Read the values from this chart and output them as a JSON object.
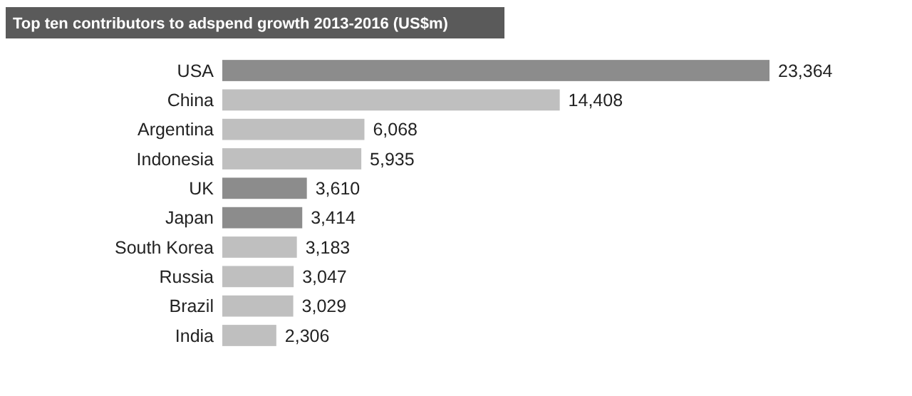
{
  "chart_data": {
    "type": "bar",
    "orientation": "horizontal",
    "title": "Top ten contributors to adspend growth 2013-2016  (US$m)",
    "categories": [
      "USA",
      "China",
      "Argentina",
      "Indonesia",
      "UK",
      "Japan",
      "South Korea",
      "Russia",
      "Brazil",
      "India"
    ],
    "values": [
      23364,
      14408,
      6068,
      5935,
      3610,
      3414,
      3183,
      3047,
      3029,
      2306
    ],
    "colors": [
      "#8c8c8c",
      "#bfbfbf",
      "#bfbfbf",
      "#bfbfbf",
      "#8c8c8c",
      "#8c8c8c",
      "#bfbfbf",
      "#bfbfbf",
      "#bfbfbf",
      "#bfbfbf"
    ],
    "value_labels": [
      "23,364",
      "14,408",
      "6,068",
      "5,935",
      "3,610",
      "3,414",
      "3,183",
      "3,047",
      "3,029",
      "2,306"
    ]
  }
}
